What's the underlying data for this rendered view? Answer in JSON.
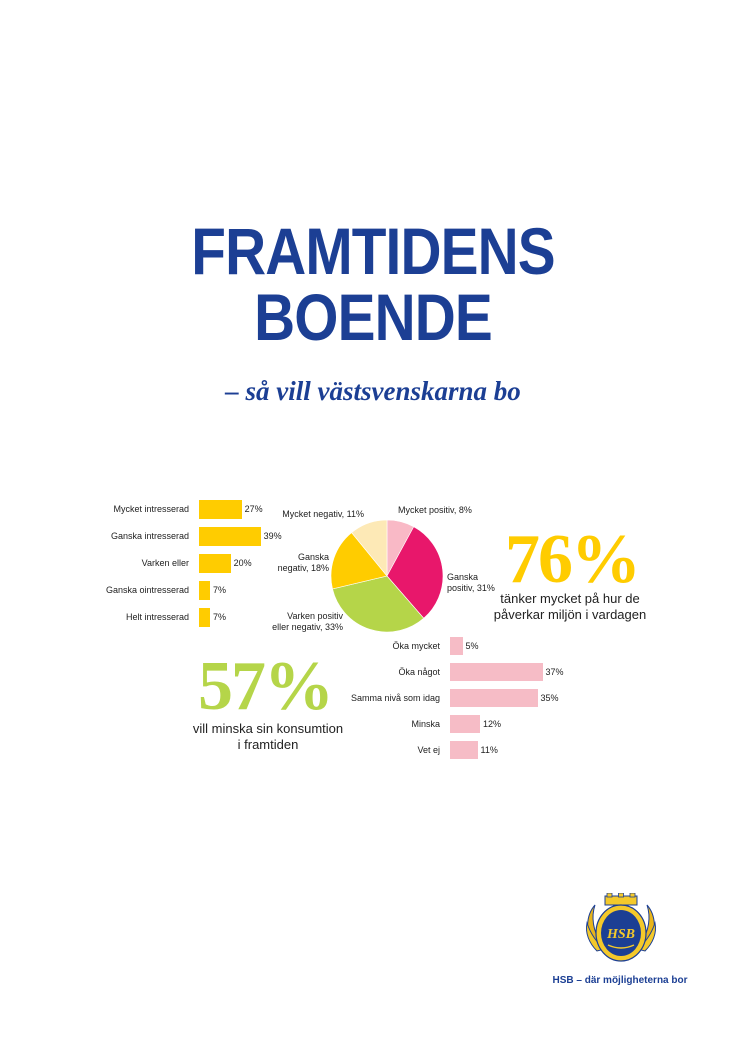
{
  "header": {
    "title_line1": "FRAMTIDENS",
    "title_line2": "BOENDE",
    "subtitle": "– så vill västsvenskarna bo"
  },
  "colors": {
    "brand_blue": "#1c3f94",
    "yellow": "#ffcc00",
    "pink_magenta": "#e8176b",
    "light_pink": "#f9c0c8",
    "lime_green": "#b5d549",
    "cream": "#fde9b6",
    "soft_pink": "#f6bcc6"
  },
  "stat_left": {
    "value": "57%",
    "caption_line1": "vill minska sin konsumtion",
    "caption_line2": "i framtiden"
  },
  "stat_right": {
    "value": "76%",
    "caption_line1": "tänker mycket på hur de",
    "caption_line2": "påverkar miljön i vardagen"
  },
  "logo": {
    "text": "HSB",
    "tagline": "HSB – där möjligheterna bor"
  },
  "chart_data": [
    {
      "type": "bar",
      "orientation": "horizontal",
      "categories": [
        "Mycket intresserad",
        "Ganska intresserad",
        "Varken eller",
        "Ganska ointresserad",
        "Helt intresserad"
      ],
      "values": [
        27,
        39,
        20,
        7,
        7
      ],
      "value_labels": [
        "27%",
        "39%",
        "20%",
        "7%",
        "7%"
      ],
      "color": "#ffcc00",
      "title": "",
      "xlabel": "",
      "ylabel": ""
    },
    {
      "type": "pie",
      "slices": [
        {
          "label_line1": "Mycket positiv, 8%",
          "label_line2": "",
          "value": 8,
          "color": "#f9b9c6"
        },
        {
          "label_line1": "Ganska",
          "label_line2": "positiv, 31%",
          "value": 31,
          "color": "#e8176b"
        },
        {
          "label_line1": "Varken positiv",
          "label_line2": "eller negativ, 33%",
          "value": 33,
          "color": "#b5d549"
        },
        {
          "label_line1": "Ganska",
          "label_line2": "negativ, 18%",
          "value": 18,
          "color": "#ffcc00"
        },
        {
          "label_line1": "Mycket negativ, 11%",
          "label_line2": "",
          "value": 11,
          "color": "#fde9b6"
        }
      ],
      "title": ""
    },
    {
      "type": "bar",
      "orientation": "horizontal",
      "categories": [
        "Öka mycket",
        "Öka något",
        "Samma nivå som idag",
        "Minska",
        "Vet ej"
      ],
      "values": [
        5,
        37,
        35,
        12,
        11
      ],
      "value_labels": [
        "5%",
        "37%",
        "35%",
        "12%",
        "11%"
      ],
      "color": "#f6bcc6",
      "title": "",
      "xlabel": "",
      "ylabel": ""
    }
  ]
}
